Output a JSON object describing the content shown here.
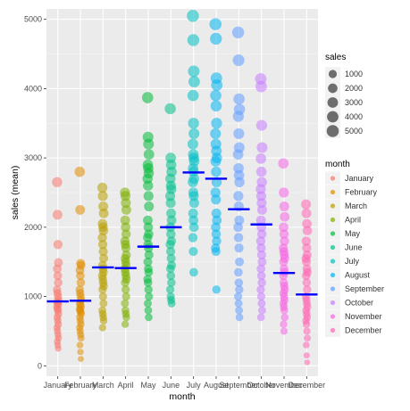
{
  "chart_data": {
    "type": "scatter",
    "xlabel": "month",
    "ylabel": "sales (mean)",
    "ylim": [
      -150,
      5150
    ],
    "y_ticks": [
      0,
      1000,
      2000,
      3000,
      4000,
      5000
    ],
    "categories": [
      "January",
      "February",
      "March",
      "April",
      "May",
      "June",
      "July",
      "August",
      "September",
      "October",
      "November",
      "December"
    ],
    "colors": [
      "#F8766D",
      "#DE8C00",
      "#B79F00",
      "#7CAE00",
      "#00BA38",
      "#00C08B",
      "#00BFC4",
      "#00B4F0",
      "#619CFF",
      "#C77CFF",
      "#F564E3",
      "#FF64B0"
    ],
    "mean_values": [
      930,
      940,
      1420,
      1410,
      1720,
      2000,
      2790,
      2700,
      2260,
      2040,
      1340,
      1030
    ],
    "mean_color": "#0000FF",
    "series": [
      {
        "name": "January",
        "values": [
          2650,
          2180,
          1750,
          1490,
          1400,
          1300,
          1200,
          1100,
          1050,
          1000,
          950,
          920,
          900,
          880,
          850,
          820,
          800,
          750,
          700,
          650,
          600,
          550,
          500,
          450,
          400,
          350,
          300,
          250
        ]
      },
      {
        "name": "February",
        "values": [
          2800,
          2250,
          1480,
          1450,
          1380,
          1300,
          1200,
          1100,
          1050,
          1000,
          950,
          900,
          880,
          850,
          820,
          800,
          780,
          750,
          700,
          650,
          600,
          550,
          500,
          450,
          400,
          300,
          200,
          100
        ]
      },
      {
        "name": "March",
        "values": [
          2570,
          2450,
          2300,
          2200,
          2050,
          2000,
          1950,
          1850,
          1750,
          1650,
          1550,
          1450,
          1400,
          1350,
          1300,
          1250,
          1200,
          1150,
          1100,
          1000,
          900,
          800,
          750,
          700,
          650,
          550
        ]
      },
      {
        "name": "April",
        "values": [
          2500,
          2450,
          2350,
          2250,
          2100,
          2000,
          1900,
          1800,
          1750,
          1700,
          1600,
          1550,
          1500,
          1450,
          1400,
          1350,
          1300,
          1250,
          1200,
          1100,
          1000,
          900,
          800,
          750,
          700,
          600
        ]
      },
      {
        "name": "May",
        "values": [
          3870,
          3300,
          3200,
          3050,
          2900,
          2850,
          2780,
          2700,
          2600,
          2450,
          2300,
          2100,
          2000,
          1900,
          1850,
          1750,
          1700,
          1600,
          1500,
          1400,
          1350,
          1250,
          1200,
          1100,
          1000,
          900,
          800,
          700
        ]
      },
      {
        "name": "June",
        "values": [
          3710,
          3000,
          2900,
          2800,
          2700,
          2600,
          2550,
          2450,
          2350,
          2200,
          2100,
          2000,
          1900,
          1800,
          1750,
          1650,
          1550,
          1450,
          1400,
          1300,
          1200,
          1100,
          1000,
          950,
          900
        ]
      },
      {
        "name": "July",
        "values": [
          5050,
          4700,
          4250,
          4100,
          3900,
          3500,
          3350,
          3200,
          3050,
          3000,
          2950,
          2850,
          2800,
          2700,
          2650,
          2500,
          2450,
          2350,
          2200,
          2100,
          2000,
          1850,
          1650,
          1350
        ]
      },
      {
        "name": "August",
        "values": [
          4930,
          4720,
          4150,
          4050,
          3900,
          3750,
          3500,
          3350,
          3200,
          3100,
          3000,
          2950,
          2800,
          2650,
          2500,
          2400,
          2200,
          2100,
          2000,
          1900,
          1800,
          1700,
          1650,
          1100
        ]
      },
      {
        "name": "September",
        "values": [
          4810,
          4410,
          3850,
          3700,
          3600,
          3350,
          3150,
          3050,
          2850,
          2750,
          2650,
          2450,
          2300,
          2100,
          2000,
          1850,
          1700,
          1500,
          1350,
          1200,
          1100,
          1000,
          900,
          800,
          700
        ]
      },
      {
        "name": "October",
        "values": [
          4140,
          4030,
          3470,
          3150,
          2990,
          2800,
          2650,
          2550,
          2450,
          2350,
          2250,
          2100,
          2000,
          1900,
          1800,
          1700,
          1600,
          1500,
          1400,
          1300,
          1200,
          1100,
          1000,
          900,
          800,
          700
        ]
      },
      {
        "name": "November",
        "values": [
          2920,
          2500,
          2300,
          2150,
          2000,
          1900,
          1800,
          1700,
          1650,
          1600,
          1550,
          1500,
          1400,
          1350,
          1300,
          1200,
          1150,
          1100,
          1050,
          1000,
          950,
          900,
          850,
          800,
          700,
          600,
          500
        ]
      },
      {
        "name": "December",
        "values": [
          2330,
          2200,
          2050,
          1950,
          1800,
          1700,
          1600,
          1550,
          1500,
          1400,
          1350,
          1300,
          1200,
          1100,
          1000,
          950,
          900,
          850,
          800,
          750,
          700,
          650,
          600,
          500,
          400,
          300,
          150,
          50
        ]
      }
    ],
    "size_legend": {
      "title": "sales",
      "labels": [
        "1000",
        "2000",
        "3000",
        "4000",
        "5000"
      ],
      "values": [
        1000,
        2000,
        3000,
        4000,
        5000
      ]
    },
    "color_legend": {
      "title": "month",
      "labels": [
        "January",
        "February",
        "March",
        "April",
        "May",
        "June",
        "July",
        "August",
        "September",
        "October",
        "November",
        "December"
      ]
    },
    "legend_position": "right",
    "grid": true
  }
}
